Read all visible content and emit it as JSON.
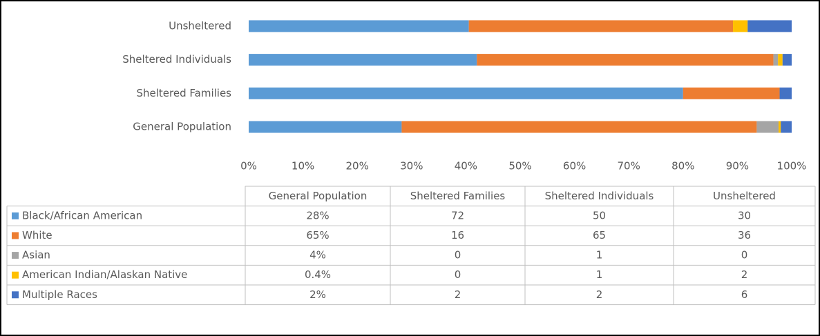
{
  "chart_data": {
    "type": "bar",
    "orientation": "horizontal",
    "stacking": "percent",
    "categories": [
      "General Population",
      "Sheltered Families",
      "Sheltered Individuals",
      "Unsheltered"
    ],
    "series": [
      {
        "name": "Black/African American",
        "color": "#5b9bd5",
        "values": [
          28,
          72,
          50,
          30
        ],
        "value_labels": [
          "28%",
          "72",
          "50",
          "30"
        ]
      },
      {
        "name": "White",
        "color": "#ed7d31",
        "values": [
          65,
          16,
          65,
          36
        ],
        "value_labels": [
          "65%",
          "16",
          "65",
          "36"
        ]
      },
      {
        "name": "Asian",
        "color": "#a5a5a5",
        "values": [
          4,
          0,
          1,
          0
        ],
        "value_labels": [
          "4%",
          "0",
          "1",
          "0"
        ]
      },
      {
        "name": "American Indian/Alaskan Native",
        "color": "#ffc000",
        "values": [
          0.4,
          0,
          1,
          2
        ],
        "value_labels": [
          "0.4%",
          "0",
          "1",
          "2"
        ]
      },
      {
        "name": "Multiple Races",
        "color": "#4472c4",
        "values": [
          2,
          2,
          2,
          6
        ],
        "value_labels": [
          "2%",
          "2",
          "2",
          "6"
        ]
      }
    ],
    "xlim": [
      0,
      100
    ],
    "xticks": [
      {
        "value": 0,
        "label": "0%"
      },
      {
        "value": 10,
        "label": "10%"
      },
      {
        "value": 20,
        "label": "20%"
      },
      {
        "value": 30,
        "label": "30%"
      },
      {
        "value": 40,
        "label": "40%"
      },
      {
        "value": 50,
        "label": "50%"
      },
      {
        "value": 60,
        "label": "60%"
      },
      {
        "value": 70,
        "label": "70%"
      },
      {
        "value": 80,
        "label": "80%"
      },
      {
        "value": 90,
        "label": "90%"
      },
      {
        "value": 100,
        "label": "100%"
      }
    ],
    "grid": false,
    "data_table": true
  }
}
